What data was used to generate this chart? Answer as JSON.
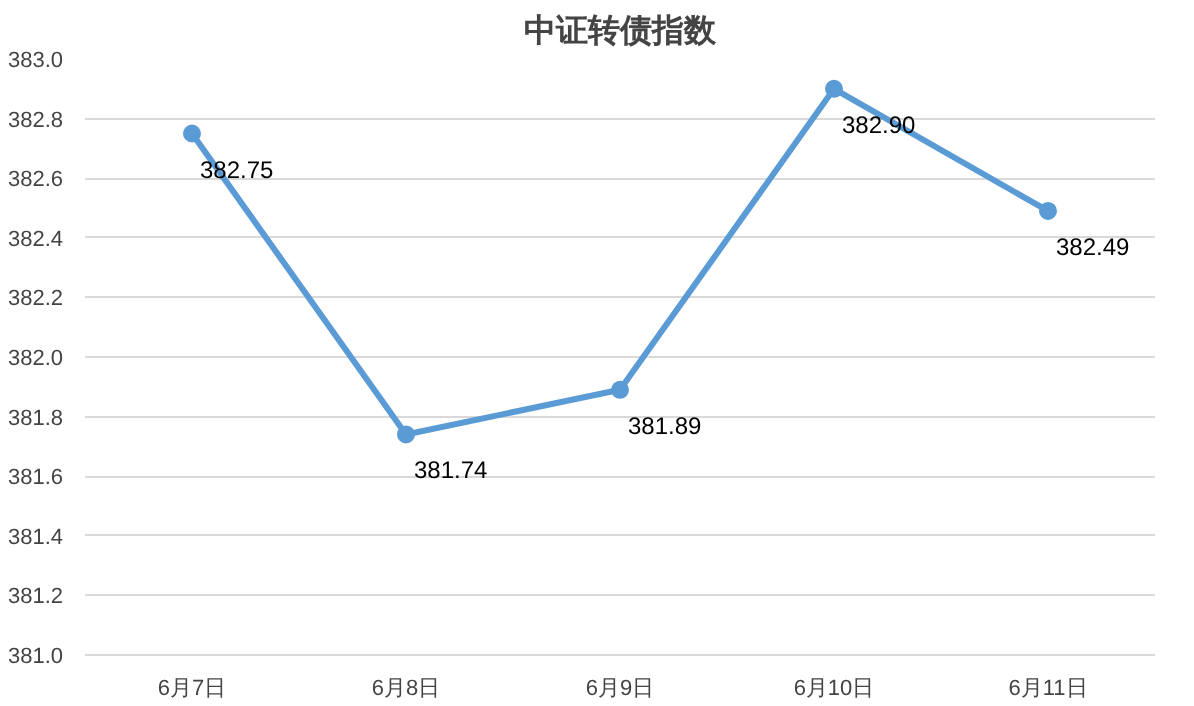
{
  "chart_data": {
    "type": "line",
    "title": "中证转债指数",
    "categories": [
      "6月7日",
      "6月8日",
      "6月9日",
      "6月10日",
      "6月11日"
    ],
    "series": [
      {
        "color": "#5b9bd5",
        "values": [
          382.75,
          381.74,
          381.89,
          382.9,
          382.49
        ]
      }
    ],
    "ylim": [
      381.0,
      383.0
    ],
    "yticks": [
      {
        "value": 381.0,
        "label": "381.0"
      },
      {
        "value": 381.2,
        "label": "381.2"
      },
      {
        "value": 381.4,
        "label": "381.4"
      },
      {
        "value": 381.6,
        "label": "381.6"
      },
      {
        "value": 381.8,
        "label": "381.8"
      },
      {
        "value": 382.0,
        "label": "382.0"
      },
      {
        "value": 382.2,
        "label": "382.2"
      },
      {
        "value": 382.4,
        "label": "382.4"
      },
      {
        "value": 382.6,
        "label": "382.6"
      },
      {
        "value": 382.8,
        "label": "382.8"
      },
      {
        "value": 383.0,
        "label": "383.0"
      }
    ],
    "value_labels": [
      "382.75",
      "381.74",
      "381.89",
      "382.90",
      "382.49"
    ],
    "grid": "y",
    "marker": "circle",
    "line_style": "solid"
  }
}
